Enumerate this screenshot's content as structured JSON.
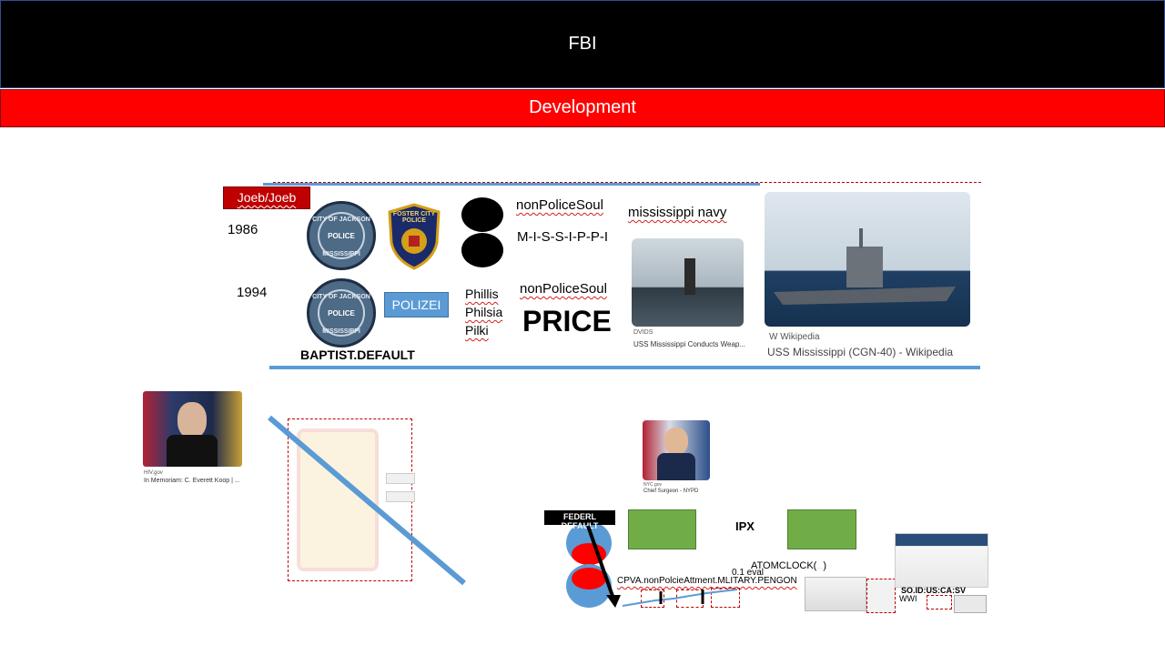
{
  "header": {
    "title": "FBI",
    "subtitle": "Development"
  },
  "tag": {
    "label": "Joeb/Joeb"
  },
  "years": {
    "first": "1986",
    "second": "1994"
  },
  "patches": {
    "jackson_seal_text_top": "CITY OF JACKSON",
    "jackson_seal_text_mid": "POLICE",
    "jackson_seal_text_bottom": "MISSISSIPPI",
    "foster_city_text": "FOSTER CITY POLICE",
    "polizei": "POLIZEI",
    "baptist_default": "BAPTIST.DEFAULT"
  },
  "words": {
    "nonpolice_1": "nonPoliceSoul",
    "mississippi_spelled": "M-I-S-S-I-P-P-I",
    "nonpolice_2": "nonPoliceSoul",
    "price": "PRICE",
    "names": [
      "Phillis",
      "Philsia",
      "Pilki"
    ],
    "navy": "mississippi navy"
  },
  "image_cards": {
    "submarine_source": "DVIDS",
    "submarine_caption": "USS Mississippi Conducts Weap...",
    "cruiser_source": "Wikipedia",
    "cruiser_caption": "USS Mississippi (CGN-40) - Wikipedia",
    "koop_source": "HIV.gov",
    "koop_caption": "In Memoriam: C. Everett Koop | ...",
    "nypd_source": "NYC.gov",
    "nypd_caption": "Chief Surgeon - NYPD"
  },
  "diagram": {
    "federl_default": "FEDERL DEFAULT",
    "ipx": "IPX",
    "atomclock": "ATOMCLOCK(",
    "atomclock_close": ")",
    "eval": "0.1 eval",
    "cpva": "CPVA.nonPolcieAttment.MLITARY.PENGON",
    "so_id": "SO.ID:US:CA:SV",
    "wwi": "WWI"
  },
  "colors": {
    "accent_blue": "#5b9bd5",
    "header_red": "#ff0000",
    "green_box": "#70ad47",
    "disc_blue": "#5b9bd5",
    "disc_red": "#ff0000"
  }
}
